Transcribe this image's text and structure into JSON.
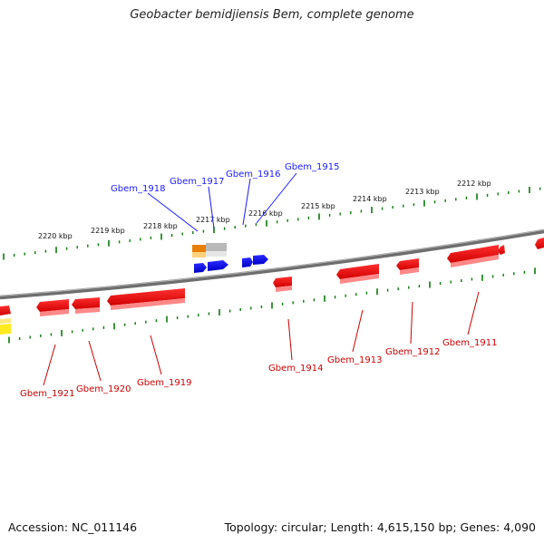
{
  "title": "Geobacter bemidjiensis Bem, complete genome",
  "footer": {
    "accession": "Accession: NC_011146",
    "summary": "Topology: circular; Length: 4,615,150 bp; Genes: 4,090"
  },
  "colors": {
    "forward_gene": "#0000ff",
    "reverse_gene": "#ff0000",
    "tick": "#0a7a0a",
    "backbone": "#7a7a7a",
    "label_top": "#1a1aff",
    "label_bottom": "#cc0000"
  },
  "scale_ticks": [
    {
      "label": "2220 kbp"
    },
    {
      "label": "2219 kbp"
    },
    {
      "label": "2218 kbp"
    },
    {
      "label": "2217 kbp"
    },
    {
      "label": "2216 kbp"
    },
    {
      "label": "2215 kbp"
    },
    {
      "label": "2214 kbp"
    },
    {
      "label": "2213 kbp"
    },
    {
      "label": "2212 kbp"
    }
  ],
  "top_gene_labels": [
    {
      "name": "Gbem_1918"
    },
    {
      "name": "Gbem_1917"
    },
    {
      "name": "Gbem_1916"
    },
    {
      "name": "Gbem_1915"
    }
  ],
  "bottom_gene_labels": [
    {
      "name": "Gbem_1921"
    },
    {
      "name": "Gbem_1920"
    },
    {
      "name": "Gbem_1919"
    },
    {
      "name": "Gbem_1914"
    },
    {
      "name": "Gbem_1913"
    },
    {
      "name": "Gbem_1912"
    },
    {
      "name": "Gbem_1911"
    }
  ]
}
